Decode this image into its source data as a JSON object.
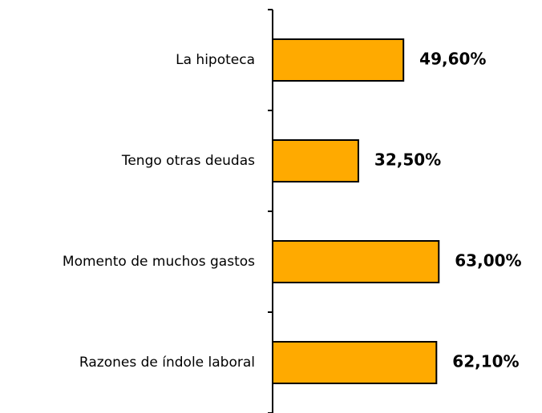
{
  "chart_data": {
    "type": "barh",
    "categories": [
      "La hipoteca",
      "Tengo otras deudas",
      "Momento de muchos gastos",
      "Razones de índole laboral"
    ],
    "values": [
      49.6,
      32.5,
      63.0,
      62.1
    ],
    "value_labels": [
      "49,60%",
      "32,50%",
      "63,00%",
      "62,10%"
    ],
    "color": "#ffaa00",
    "xlim": [
      0,
      100
    ]
  }
}
